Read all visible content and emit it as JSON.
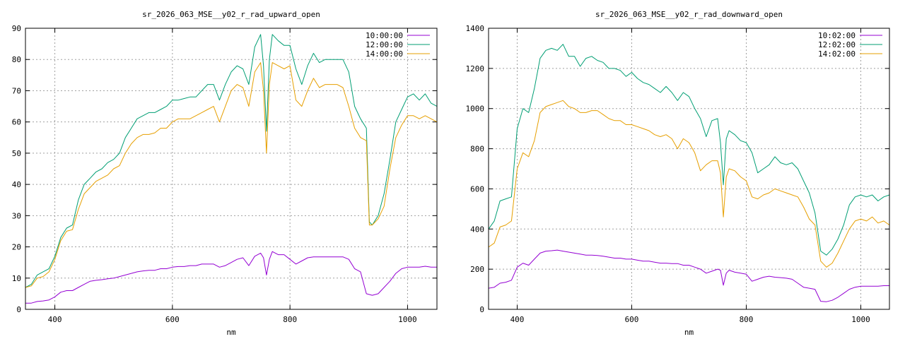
{
  "chart_data": [
    {
      "type": "line",
      "title": "sr_2026_063_MSE__y02_r_rad_upward_open",
      "xlabel": "nm",
      "ylabel": "",
      "xlim": [
        350,
        1050
      ],
      "ylim": [
        0,
        90
      ],
      "xticks": [
        400,
        600,
        800,
        1000
      ],
      "yticks": [
        0,
        10,
        20,
        30,
        40,
        50,
        60,
        70,
        80,
        90
      ],
      "grid": true,
      "legend_position": "top-right",
      "series": [
        {
          "name": "10:00:00",
          "color": "#9400d3",
          "x": [
            350,
            360,
            370,
            380,
            390,
            400,
            410,
            420,
            430,
            440,
            450,
            460,
            470,
            480,
            490,
            500,
            510,
            520,
            530,
            540,
            550,
            560,
            570,
            580,
            590,
            600,
            610,
            620,
            630,
            640,
            650,
            660,
            670,
            680,
            690,
            700,
            710,
            720,
            730,
            740,
            750,
            755,
            760,
            765,
            770,
            780,
            790,
            800,
            810,
            820,
            830,
            840,
            850,
            860,
            870,
            880,
            890,
            900,
            910,
            920,
            930,
            940,
            950,
            960,
            970,
            980,
            990,
            1000,
            1010,
            1020,
            1030,
            1040,
            1050
          ],
          "y": [
            2,
            2,
            2.5,
            2.7,
            3,
            4,
            5.5,
            6,
            6,
            7,
            8,
            9,
            9.3,
            9.5,
            9.8,
            10,
            10.5,
            11,
            11.5,
            12,
            12.3,
            12.5,
            12.5,
            13,
            13,
            13.5,
            13.7,
            13.7,
            14,
            14,
            14.5,
            14.5,
            14.5,
            13.5,
            14,
            15,
            16,
            16.5,
            14,
            17,
            18,
            16.5,
            11,
            16,
            18.5,
            17.5,
            17.5,
            16,
            14.5,
            15.5,
            16.5,
            16.8,
            16.8,
            16.8,
            16.8,
            16.8,
            16.8,
            16,
            13,
            12,
            5,
            4.5,
            5,
            7,
            9,
            11.5,
            13,
            13.5,
            13.5,
            13.5,
            13.8,
            13.5,
            13.5
          ]
        },
        {
          "name": "12:00:00",
          "color": "#009e73",
          "x": [
            350,
            360,
            370,
            380,
            390,
            400,
            410,
            420,
            430,
            440,
            450,
            460,
            470,
            480,
            490,
            500,
            510,
            520,
            530,
            540,
            550,
            560,
            570,
            580,
            590,
            600,
            610,
            620,
            630,
            640,
            650,
            660,
            670,
            680,
            690,
            700,
            710,
            720,
            730,
            740,
            750,
            755,
            760,
            765,
            770,
            780,
            790,
            800,
            810,
            820,
            830,
            840,
            850,
            860,
            870,
            880,
            890,
            900,
            910,
            920,
            930,
            935,
            940,
            950,
            960,
            970,
            980,
            990,
            1000,
            1010,
            1020,
            1030,
            1040,
            1050
          ],
          "y": [
            7,
            8,
            11,
            12,
            13,
            17,
            23,
            26,
            27,
            35,
            40,
            42,
            44,
            45,
            47,
            48,
            50,
            55,
            58,
            61,
            62,
            63,
            63,
            64,
            65,
            67,
            67,
            67.5,
            68,
            68,
            70,
            72,
            72,
            67,
            72,
            76,
            78,
            77,
            72,
            84,
            88,
            78,
            57,
            80,
            88,
            86,
            84.5,
            84.5,
            77,
            72,
            78,
            82,
            79,
            80,
            80,
            80,
            80,
            76,
            65,
            61,
            58,
            28,
            27,
            30,
            37,
            48,
            60,
            64,
            68,
            69,
            67,
            69,
            66,
            65
          ]
        },
        {
          "name": "14:00:00",
          "color": "#e69f00",
          "x": [
            350,
            360,
            370,
            380,
            390,
            400,
            410,
            420,
            430,
            440,
            450,
            460,
            470,
            480,
            490,
            500,
            510,
            520,
            530,
            540,
            550,
            560,
            570,
            580,
            590,
            600,
            610,
            620,
            630,
            640,
            650,
            660,
            670,
            680,
            690,
            700,
            710,
            720,
            730,
            740,
            750,
            755,
            760,
            765,
            770,
            780,
            790,
            800,
            810,
            820,
            830,
            840,
            850,
            860,
            870,
            880,
            890,
            900,
            910,
            920,
            930,
            935,
            940,
            950,
            960,
            970,
            980,
            990,
            1000,
            1010,
            1020,
            1030,
            1040,
            1050
          ],
          "y": [
            7,
            7.5,
            10,
            10.5,
            12,
            16,
            22,
            25,
            25.5,
            32,
            37,
            39,
            41,
            42,
            43,
            45,
            46,
            50,
            53,
            55,
            56,
            56,
            56.5,
            58,
            58,
            60,
            61,
            61,
            61,
            62,
            63,
            64,
            65,
            60,
            65,
            70,
            72,
            71,
            65,
            76,
            79,
            70,
            50,
            72,
            79,
            78,
            77,
            78,
            67,
            65,
            70,
            74,
            71,
            72,
            72,
            72,
            71,
            65,
            58,
            55,
            54,
            27,
            27,
            29,
            33,
            45,
            55,
            59,
            62,
            62,
            61,
            62,
            61,
            60
          ]
        }
      ]
    },
    {
      "type": "line",
      "title": "sr_2026_063_MSE__y02_r_rad_downward_open",
      "xlabel": "nm",
      "ylabel": "",
      "xlim": [
        350,
        1050
      ],
      "ylim": [
        0,
        1400
      ],
      "xticks": [
        400,
        600,
        800,
        1000
      ],
      "yticks": [
        0,
        200,
        400,
        600,
        800,
        1000,
        1200,
        1400
      ],
      "grid": true,
      "legend_position": "top-right",
      "series": [
        {
          "name": "10:02:00",
          "color": "#9400d3",
          "x": [
            350,
            360,
            370,
            380,
            390,
            400,
            410,
            420,
            430,
            440,
            450,
            460,
            470,
            480,
            490,
            500,
            510,
            520,
            530,
            540,
            550,
            560,
            570,
            580,
            590,
            600,
            610,
            620,
            630,
            640,
            650,
            660,
            670,
            680,
            690,
            700,
            710,
            720,
            730,
            740,
            750,
            755,
            760,
            765,
            770,
            780,
            790,
            800,
            810,
            820,
            830,
            840,
            850,
            860,
            870,
            880,
            890,
            900,
            910,
            920,
            930,
            940,
            950,
            960,
            970,
            980,
            990,
            1000,
            1010,
            1020,
            1030,
            1040,
            1050
          ],
          "y": [
            105,
            110,
            130,
            135,
            145,
            210,
            230,
            220,
            250,
            280,
            290,
            292,
            295,
            290,
            285,
            280,
            275,
            270,
            270,
            268,
            265,
            260,
            255,
            255,
            250,
            250,
            245,
            240,
            240,
            235,
            230,
            230,
            228,
            228,
            220,
            220,
            210,
            200,
            180,
            190,
            200,
            195,
            120,
            180,
            195,
            185,
            180,
            175,
            140,
            150,
            160,
            165,
            160,
            158,
            155,
            150,
            130,
            110,
            105,
            100,
            40,
            38,
            45,
            60,
            80,
            100,
            110,
            115,
            115,
            115,
            115,
            118,
            118
          ]
        },
        {
          "name": "12:02:00",
          "color": "#009e73",
          "x": [
            350,
            360,
            370,
            380,
            390,
            400,
            410,
            420,
            430,
            440,
            450,
            460,
            470,
            480,
            490,
            500,
            510,
            520,
            530,
            540,
            550,
            560,
            570,
            580,
            590,
            600,
            610,
            620,
            630,
            640,
            650,
            660,
            670,
            680,
            690,
            700,
            710,
            720,
            730,
            740,
            750,
            755,
            760,
            765,
            770,
            780,
            790,
            800,
            810,
            820,
            830,
            840,
            850,
            860,
            870,
            880,
            890,
            900,
            910,
            920,
            930,
            940,
            950,
            960,
            970,
            980,
            990,
            1000,
            1010,
            1020,
            1030,
            1040,
            1050
          ],
          "y": [
            400,
            440,
            540,
            550,
            560,
            900,
            1000,
            980,
            1100,
            1250,
            1290,
            1300,
            1290,
            1320,
            1260,
            1260,
            1210,
            1250,
            1260,
            1240,
            1230,
            1200,
            1200,
            1190,
            1160,
            1180,
            1150,
            1130,
            1120,
            1100,
            1080,
            1110,
            1080,
            1040,
            1080,
            1060,
            1000,
            950,
            860,
            940,
            950,
            830,
            620,
            850,
            890,
            870,
            840,
            830,
            780,
            680,
            700,
            720,
            760,
            730,
            720,
            730,
            700,
            640,
            580,
            480,
            290,
            270,
            300,
            350,
            420,
            520,
            560,
            570,
            560,
            570,
            540,
            560,
            570
          ]
        },
        {
          "name": "14:02:00",
          "color": "#e69f00",
          "x": [
            350,
            360,
            370,
            380,
            390,
            400,
            410,
            420,
            430,
            440,
            450,
            460,
            470,
            480,
            490,
            500,
            510,
            520,
            530,
            540,
            550,
            560,
            570,
            580,
            590,
            600,
            610,
            620,
            630,
            640,
            650,
            660,
            670,
            680,
            690,
            700,
            710,
            720,
            730,
            740,
            750,
            755,
            760,
            765,
            770,
            780,
            790,
            800,
            810,
            820,
            830,
            840,
            850,
            860,
            870,
            880,
            890,
            900,
            910,
            920,
            930,
            940,
            950,
            960,
            970,
            980,
            990,
            1000,
            1010,
            1020,
            1030,
            1040,
            1050
          ],
          "y": [
            310,
            330,
            410,
            420,
            440,
            700,
            780,
            760,
            840,
            980,
            1010,
            1020,
            1030,
            1040,
            1010,
            1000,
            980,
            980,
            990,
            990,
            970,
            950,
            940,
            940,
            920,
            920,
            910,
            900,
            890,
            870,
            860,
            870,
            850,
            800,
            850,
            830,
            780,
            690,
            720,
            740,
            740,
            680,
            460,
            660,
            700,
            690,
            660,
            640,
            560,
            550,
            570,
            580,
            600,
            590,
            580,
            570,
            560,
            510,
            450,
            420,
            240,
            210,
            230,
            280,
            340,
            400,
            440,
            450,
            440,
            460,
            430,
            440,
            420
          ]
        }
      ]
    }
  ]
}
